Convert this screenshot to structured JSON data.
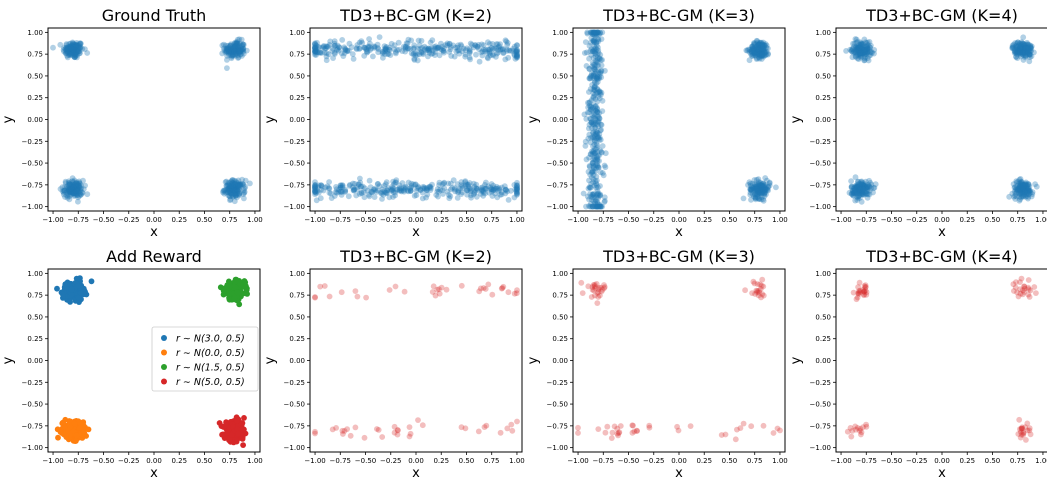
{
  "chart_data": [
    {
      "type": "scatter",
      "title": "Ground Truth",
      "xlabel": "x",
      "ylabel": "y",
      "xlim": [
        -1.05,
        1.05
      ],
      "ylim": [
        -1.05,
        1.05
      ],
      "xticks": [
        "−1.00",
        "−0.75",
        "−0.50",
        "−0.25",
        "0.00",
        "0.25",
        "0.50",
        "0.75",
        "1.00"
      ],
      "yticks": [
        "1.00",
        "0.75",
        "0.50",
        "0.25",
        "0.00",
        "−0.25",
        "−0.50",
        "−0.75",
        "−1.00"
      ],
      "series": [
        {
          "color": "#1f77b4",
          "alpha": 0.35,
          "clusters": [
            {
              "center": [
                -0.8,
                0.8
              ],
              "spread": 0.05,
              "n": 140
            },
            {
              "center": [
                0.8,
                0.8
              ],
              "spread": 0.05,
              "n": 140
            },
            {
              "center": [
                -0.8,
                -0.8
              ],
              "spread": 0.05,
              "n": 140
            },
            {
              "center": [
                0.8,
                -0.8
              ],
              "spread": 0.05,
              "n": 140
            }
          ]
        }
      ]
    },
    {
      "type": "scatter",
      "title": "TD3+BC-GM (K=2)",
      "xlabel": "x",
      "ylabel": "y",
      "xlim": [
        -1.05,
        1.05
      ],
      "ylim": [
        -1.05,
        1.05
      ],
      "xticks": [
        "−1.00",
        "−0.75",
        "−0.50",
        "−0.25",
        "0.00",
        "0.25",
        "0.50",
        "0.75",
        "1.00"
      ],
      "yticks": [
        "1.00",
        "0.75",
        "0.50",
        "0.25",
        "0.00",
        "−0.25",
        "−0.50",
        "−0.75",
        "−1.00"
      ],
      "series": [
        {
          "color": "#1f77b4",
          "alpha": 0.35,
          "bands": [
            {
              "x": [
                -1.0,
                1.0
              ],
              "y": 0.8,
              "spread": 0.05,
              "n": 320
            },
            {
              "x": [
                -1.0,
                1.0
              ],
              "y": -0.8,
              "spread": 0.05,
              "n": 320
            }
          ]
        }
      ]
    },
    {
      "type": "scatter",
      "title": "TD3+BC-GM (K=3)",
      "xlabel": "x",
      "ylabel": "y",
      "xlim": [
        -1.05,
        1.05
      ],
      "ylim": [
        -1.05,
        1.05
      ],
      "xticks": [
        "−1.00",
        "−0.75",
        "−0.50",
        "−0.25",
        "0.00",
        "0.25",
        "0.50",
        "0.75",
        "1.00"
      ],
      "yticks": [
        "1.00",
        "0.75",
        "0.50",
        "0.25",
        "0.00",
        "−0.25",
        "−0.50",
        "−0.75",
        "−1.00"
      ],
      "series": [
        {
          "color": "#1f77b4",
          "alpha": 0.35,
          "vbands": [
            {
              "y": [
                -1.0,
                1.0
              ],
              "x": -0.83,
              "spread": 0.04,
              "n": 380
            }
          ],
          "clusters": [
            {
              "center": [
                0.8,
                0.8
              ],
              "spread": 0.05,
              "n": 140
            },
            {
              "center": [
                0.8,
                -0.8
              ],
              "spread": 0.05,
              "n": 140
            }
          ]
        }
      ]
    },
    {
      "type": "scatter",
      "title": "TD3+BC-GM (K=4)",
      "xlabel": "x",
      "ylabel": "y",
      "xlim": [
        -1.05,
        1.05
      ],
      "ylim": [
        -1.05,
        1.05
      ],
      "xticks": [
        "−1.00",
        "−0.75",
        "−0.50",
        "−0.25",
        "0.00",
        "0.25",
        "0.50",
        "0.75",
        "1.00"
      ],
      "yticks": [
        "1.00",
        "0.75",
        "0.50",
        "0.25",
        "0.00",
        "−0.25",
        "−0.50",
        "−0.75",
        "−1.00"
      ],
      "series": [
        {
          "color": "#1f77b4",
          "alpha": 0.35,
          "clusters": [
            {
              "center": [
                -0.8,
                0.8
              ],
              "spread": 0.05,
              "n": 140
            },
            {
              "center": [
                0.8,
                0.8
              ],
              "spread": 0.05,
              "n": 140
            },
            {
              "center": [
                -0.8,
                -0.8
              ],
              "spread": 0.05,
              "n": 140
            },
            {
              "center": [
                0.8,
                -0.8
              ],
              "spread": 0.05,
              "n": 140
            }
          ]
        }
      ]
    },
    {
      "type": "scatter",
      "title": "Add Reward",
      "xlabel": "x",
      "ylabel": "y",
      "xlim": [
        -1.05,
        1.05
      ],
      "ylim": [
        -1.05,
        1.05
      ],
      "xticks": [
        "−1.00",
        "−0.75",
        "−0.50",
        "−0.25",
        "0.00",
        "0.25",
        "0.50",
        "0.75",
        "1.00"
      ],
      "yticks": [
        "1.00",
        "0.75",
        "0.50",
        "0.25",
        "0.00",
        "−0.25",
        "−0.50",
        "−0.75",
        "−1.00"
      ],
      "legend": {
        "position": "center-right",
        "entries": [
          {
            "label": "r ∼ N(3.0, 0.5)",
            "color": "#1f77b4"
          },
          {
            "label": "r ∼ N(0.0, 0.5)",
            "color": "#ff7f0e"
          },
          {
            "label": "r ∼ N(1.5, 0.5)",
            "color": "#2ca02c"
          },
          {
            "label": "r ∼ N(5.0, 0.5)",
            "color": "#d62728"
          }
        ]
      },
      "series": [
        {
          "name": "r ∼ N(3.0, 0.5)",
          "color": "#1f77b4",
          "alpha": 1.0,
          "clusters": [
            {
              "center": [
                -0.8,
                0.8
              ],
              "spread": 0.05,
              "n": 220
            }
          ]
        },
        {
          "name": "r ∼ N(0.0, 0.5)",
          "color": "#ff7f0e",
          "alpha": 1.0,
          "clusters": [
            {
              "center": [
                -0.8,
                -0.8
              ],
              "spread": 0.05,
              "n": 220
            }
          ]
        },
        {
          "name": "r ∼ N(1.5, 0.5)",
          "color": "#2ca02c",
          "alpha": 1.0,
          "clusters": [
            {
              "center": [
                0.8,
                0.8
              ],
              "spread": 0.05,
              "n": 220
            }
          ]
        },
        {
          "name": "r ∼ N(5.0, 0.5)",
          "color": "#d62728",
          "alpha": 1.0,
          "clusters": [
            {
              "center": [
                0.8,
                -0.8
              ],
              "spread": 0.05,
              "n": 220
            }
          ]
        }
      ]
    },
    {
      "type": "scatter",
      "title": "TD3+BC-GM (K=2)",
      "xlabel": "x",
      "ylabel": "y",
      "xlim": [
        -1.05,
        1.05
      ],
      "ylim": [
        -1.05,
        1.05
      ],
      "xticks": [
        "−1.00",
        "−0.75",
        "−0.50",
        "−0.25",
        "0.00",
        "0.25",
        "0.50",
        "0.75",
        "1.00"
      ],
      "yticks": [
        "1.00",
        "0.75",
        "0.50",
        "0.25",
        "0.00",
        "−0.25",
        "−0.50",
        "−0.75",
        "−1.00"
      ],
      "series": [
        {
          "color": "#d62728",
          "alpha": 0.3,
          "bands": [
            {
              "x": [
                -1.0,
                1.0
              ],
              "y": 0.8,
              "spread": 0.05,
              "n": 34
            },
            {
              "x": [
                -1.0,
                1.0
              ],
              "y": -0.8,
              "spread": 0.05,
              "n": 34
            }
          ]
        }
      ]
    },
    {
      "type": "scatter",
      "title": "TD3+BC-GM (K=3)",
      "xlabel": "x",
      "ylabel": "y",
      "xlim": [
        -1.05,
        1.05
      ],
      "ylim": [
        -1.05,
        1.05
      ],
      "xticks": [
        "−1.00",
        "−0.75",
        "−0.50",
        "−0.25",
        "0.00",
        "0.25",
        "0.50",
        "0.75",
        "1.00"
      ],
      "yticks": [
        "1.00",
        "0.75",
        "0.50",
        "0.25",
        "0.00",
        "−0.25",
        "−0.50",
        "−0.75",
        "−1.00"
      ],
      "series": [
        {
          "color": "#d62728",
          "alpha": 0.3,
          "clusters": [
            {
              "center": [
                -0.82,
                0.83
              ],
              "spread": 0.05,
              "n": 26
            },
            {
              "center": [
                0.78,
                0.8
              ],
              "spread": 0.05,
              "n": 20
            }
          ],
          "bands": [
            {
              "x": [
                -1.0,
                1.0
              ],
              "y": -0.8,
              "spread": 0.04,
              "n": 36
            }
          ]
        }
      ]
    },
    {
      "type": "scatter",
      "title": "TD3+BC-GM (K=4)",
      "xlabel": "x",
      "ylabel": "y",
      "xlim": [
        -1.05,
        1.05
      ],
      "ylim": [
        -1.05,
        1.05
      ],
      "xticks": [
        "−1.00",
        "−0.75",
        "−0.50",
        "−0.25",
        "0.00",
        "0.25",
        "0.50",
        "0.75",
        "1.00"
      ],
      "yticks": [
        "1.00",
        "0.75",
        "0.50",
        "0.25",
        "0.00",
        "−0.25",
        "−0.50",
        "−0.75",
        "−1.00"
      ],
      "series": [
        {
          "color": "#d62728",
          "alpha": 0.3,
          "clusters": [
            {
              "center": [
                -0.8,
                0.8
              ],
              "spread": 0.05,
              "n": 24
            },
            {
              "center": [
                0.8,
                0.8
              ],
              "spread": 0.05,
              "n": 24
            },
            {
              "center": [
                -0.8,
                -0.78
              ],
              "spread": 0.04,
              "n": 14
            },
            {
              "center": [
                0.8,
                -0.8
              ],
              "spread": 0.04,
              "n": 20
            }
          ]
        }
      ]
    }
  ]
}
